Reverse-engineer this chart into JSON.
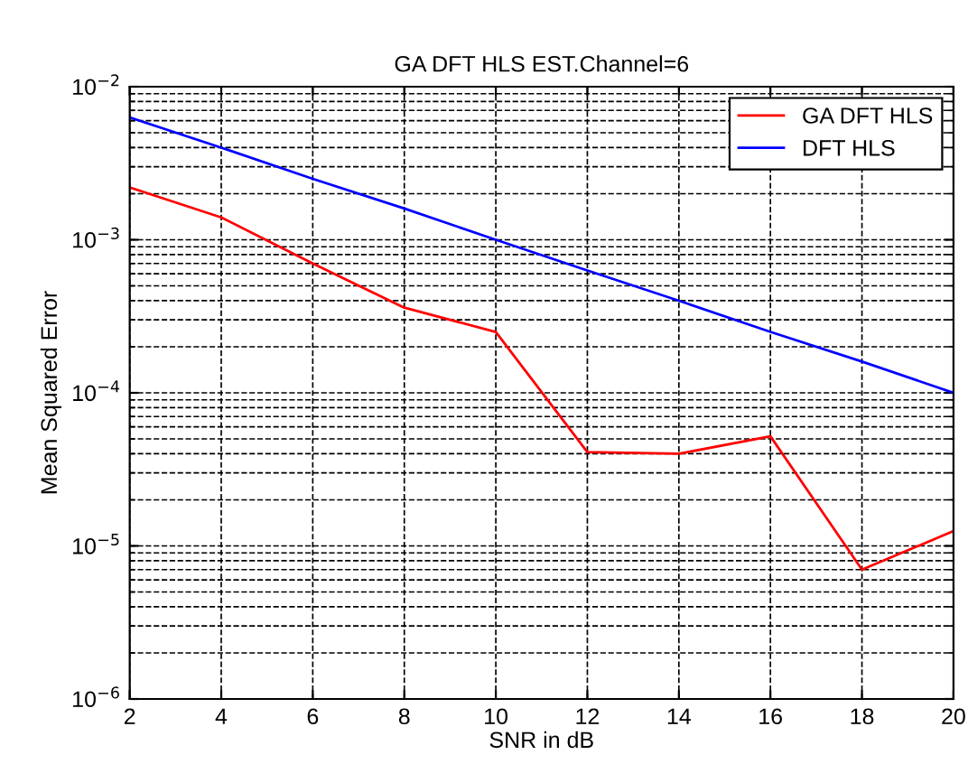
{
  "chart_data": {
    "type": "line",
    "title": "GA DFT HLS EST.Channel=6",
    "xlabel": "SNR in dB",
    "ylabel": "Mean Squared Error",
    "x": [
      2,
      4,
      6,
      8,
      10,
      12,
      14,
      16,
      18,
      20
    ],
    "series": [
      {
        "name": "GA DFT HLS",
        "color": "#ff0000",
        "values": [
          0.0022,
          0.0014,
          0.0007,
          0.00036,
          0.00025,
          4.1e-05,
          4e-05,
          5.2e-05,
          7e-06,
          1.25e-05
        ]
      },
      {
        "name": "DFT HLS",
        "color": "#0000ff",
        "values": [
          0.0063,
          0.004,
          0.0025,
          0.0016,
          0.001,
          0.00063,
          0.0004,
          0.00025,
          0.00016,
          0.0001
        ]
      }
    ],
    "log": "y",
    "xlim": [
      2,
      20
    ],
    "xticks": [
      2,
      4,
      6,
      8,
      10,
      12,
      14,
      16,
      18,
      20
    ],
    "ylim": [
      1e-06,
      0.01
    ],
    "yticks": [
      {
        "value": 1e-06,
        "label": "10$^{−6}$"
      },
      {
        "value": 1e-05,
        "label": "10$^{−5}$"
      },
      {
        "value": 0.0001,
        "label": "10$^{−4}$"
      },
      {
        "value": 0.001,
        "label": "10$^{−3}$"
      },
      {
        "value": 0.01,
        "label": "10$^{−2}$"
      }
    ],
    "grid": true,
    "legend": "top right"
  }
}
